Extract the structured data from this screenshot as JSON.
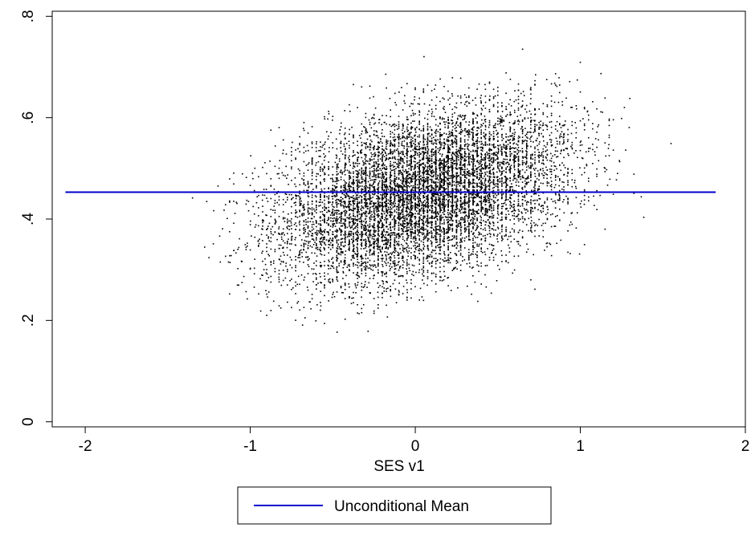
{
  "chart_data": {
    "type": "scatter",
    "title": "",
    "xlabel": "SES v1",
    "ylabel": "",
    "xlim": [
      -2.2,
      2.0
    ],
    "ylim": [
      -0.01,
      0.81
    ],
    "x_ticks": [
      -2,
      -1,
      0,
      1,
      2
    ],
    "x_tick_labels": [
      "-2",
      "-1",
      "0",
      "1",
      "2"
    ],
    "y_ticks": [
      0,
      0.2,
      0.4,
      0.6,
      0.8
    ],
    "y_tick_labels": [
      "0",
      ".2",
      ".4",
      ".6",
      ".8"
    ],
    "grid": false,
    "legend_position": "bottom",
    "scatter": {
      "point_color": "#000000",
      "x_range": [
        -2.12,
        1.82
      ],
      "y_range": [
        0.15,
        0.79
      ],
      "estimated_points": 9000,
      "trend": "positive association between SES v1 and the outcome",
      "approx_conditional_means": [
        {
          "x": -2.0,
          "y": 0.33
        },
        {
          "x": -1.0,
          "y": 0.37
        },
        {
          "x": 0.0,
          "y": 0.45
        },
        {
          "x": 1.0,
          "y": 0.53
        },
        {
          "x": 1.8,
          "y": 0.58
        }
      ]
    },
    "series": [
      {
        "name": "Unconditional Mean",
        "type": "line",
        "color": "#0000cc",
        "x": [
          -2.12,
          1.82
        ],
        "y": [
          0.453,
          0.453
        ]
      }
    ]
  }
}
